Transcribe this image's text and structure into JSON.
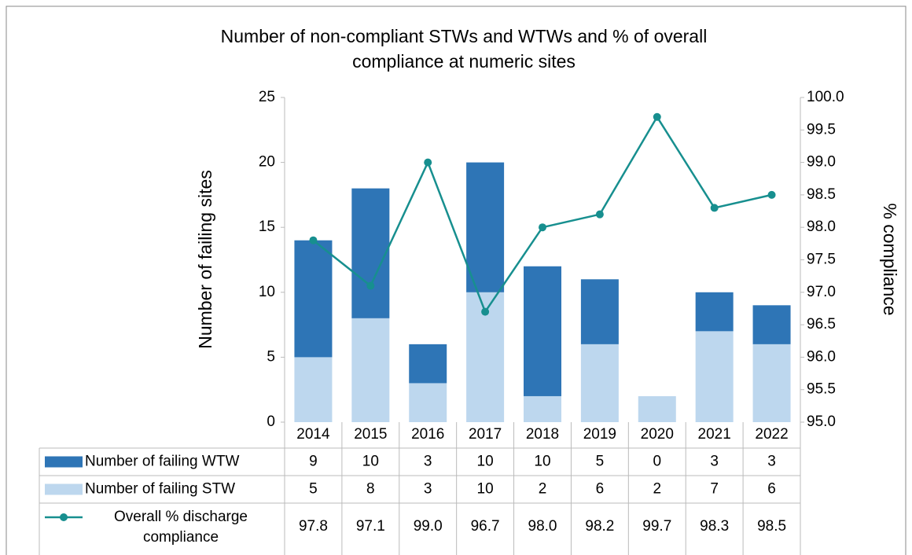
{
  "chart_data": {
    "type": "bar",
    "title_lines": [
      "Number of non-compliant STWs and WTWs and % of overall",
      "compliance at numeric sites"
    ],
    "ylabel": "Number of failing sites",
    "y2label": "% compliance",
    "categories": [
      "2014",
      "2015",
      "2016",
      "2017",
      "2018",
      "2019",
      "2020",
      "2021",
      "2022"
    ],
    "stacked": true,
    "ylim": [
      0,
      25
    ],
    "yticks": [
      0,
      5,
      10,
      15,
      20,
      25
    ],
    "y2lim": [
      95,
      100
    ],
    "y2ticks": [
      {
        "value": 95,
        "label": "95.0"
      },
      {
        "value": 95.5,
        "label": "95.5"
      },
      {
        "value": 96,
        "label": "96.0"
      },
      {
        "value": 96.5,
        "label": "96.5"
      },
      {
        "value": 97,
        "label": "97.0"
      },
      {
        "value": 97.5,
        "label": "97.5"
      },
      {
        "value": 98,
        "label": "98.0"
      },
      {
        "value": 98.5,
        "label": "98.5"
      },
      {
        "value": 99,
        "label": "99.0"
      },
      {
        "value": 99.5,
        "label": "99.5"
      },
      {
        "value": 100,
        "label": "100.0"
      }
    ],
    "series": [
      {
        "name": "Number of failing WTW",
        "color": "#2e75b6",
        "type": "bar",
        "values": [
          9,
          10,
          3,
          10,
          10,
          5,
          0,
          3,
          3
        ]
      },
      {
        "name": "Number of failing STW",
        "color": "#bdd7ee",
        "type": "bar",
        "values": [
          5,
          8,
          3,
          10,
          2,
          6,
          2,
          7,
          6
        ]
      },
      {
        "name": "Overall % discharge compliance",
        "color": "#178f8f",
        "type": "line",
        "axis": "y2",
        "values": [
          97.8,
          97.1,
          99.0,
          96.7,
          98.0,
          98.2,
          99.7,
          98.3,
          98.5
        ],
        "value_labels": [
          "97.8",
          "97.1",
          "99.0",
          "96.7",
          "98.0",
          "98.2",
          "99.7",
          "98.3",
          "98.5"
        ]
      }
    ]
  }
}
